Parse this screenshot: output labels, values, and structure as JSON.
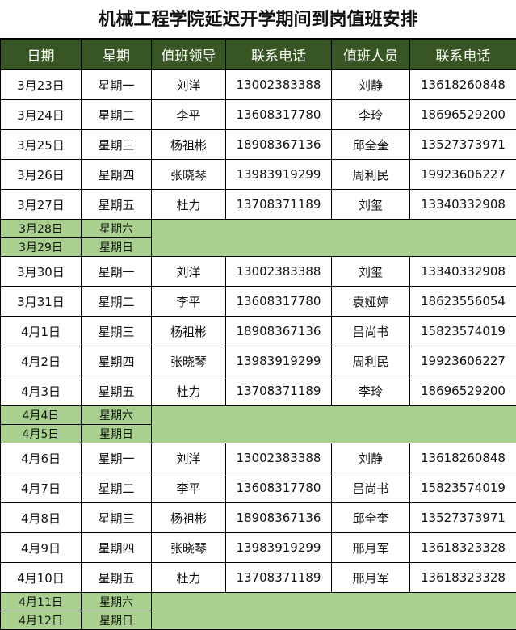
{
  "title": "机械工程学院延迟开学期间到岗值班安排",
  "headers": [
    "日期",
    "星期",
    "值班领导",
    "联系电话",
    "值班人员",
    "联系电话"
  ],
  "colors": {
    "header_bg": "#375623",
    "weekend_bg": "#a9d08e"
  },
  "rows": [
    {
      "date": "3月23日",
      "weekday": "星期一",
      "leader": "刘洋",
      "leader_phone": "13002383388",
      "staff": "刘静",
      "staff_phone": "13618260848"
    },
    {
      "date": "3月24日",
      "weekday": "星期二",
      "leader": "李平",
      "leader_phone": "13608317780",
      "staff": "李玲",
      "staff_phone": "18696529200"
    },
    {
      "date": "3月25日",
      "weekday": "星期三",
      "leader": "杨祖彬",
      "leader_phone": "18908367136",
      "staff": "邱全奎",
      "staff_phone": "13527373971"
    },
    {
      "date": "3月26日",
      "weekday": "星期四",
      "leader": "张晓琴",
      "leader_phone": "13983919299",
      "staff": "周利民",
      "staff_phone": "19923606227"
    },
    {
      "date": "3月27日",
      "weekday": "星期五",
      "leader": "杜力",
      "leader_phone": "13708371189",
      "staff": "刘玺",
      "staff_phone": "13340332908"
    },
    {
      "date": "3月28日",
      "weekday": "星期六",
      "weekend": true
    },
    {
      "date": "3月29日",
      "weekday": "星期日",
      "weekend": true
    },
    {
      "date": "3月30日",
      "weekday": "星期一",
      "leader": "刘洋",
      "leader_phone": "13002383388",
      "staff": "刘玺",
      "staff_phone": "13340332908"
    },
    {
      "date": "3月31日",
      "weekday": "星期二",
      "leader": "李平",
      "leader_phone": "13608317780",
      "staff": "袁娅婷",
      "staff_phone": "18623556054"
    },
    {
      "date": "4月1日",
      "weekday": "星期三",
      "leader": "杨祖彬",
      "leader_phone": "18908367136",
      "staff": "吕尚书",
      "staff_phone": "15823574019"
    },
    {
      "date": "4月2日",
      "weekday": "星期四",
      "leader": "张晓琴",
      "leader_phone": "13983919299",
      "staff": "周利民",
      "staff_phone": "19923606227"
    },
    {
      "date": "4月3日",
      "weekday": "星期五",
      "leader": "杜力",
      "leader_phone": "13708371189",
      "staff": "李玲",
      "staff_phone": "18696529200"
    },
    {
      "date": "4月4日",
      "weekday": "星期六",
      "weekend": true
    },
    {
      "date": "4月5日",
      "weekday": "星期日",
      "weekend": true
    },
    {
      "date": "4月6日",
      "weekday": "星期一",
      "leader": "刘洋",
      "leader_phone": "13002383388",
      "staff": "刘静",
      "staff_phone": "13618260848"
    },
    {
      "date": "4月7日",
      "weekday": "星期二",
      "leader": "李平",
      "leader_phone": "13608317780",
      "staff": "吕尚书",
      "staff_phone": "15823574019"
    },
    {
      "date": "4月8日",
      "weekday": "星期三",
      "leader": "杨祖彬",
      "leader_phone": "18908367136",
      "staff": "邱全奎",
      "staff_phone": "13527373971"
    },
    {
      "date": "4月9日",
      "weekday": "星期四",
      "leader": "张晓琴",
      "leader_phone": "13983919299",
      "staff": "邢月军",
      "staff_phone": "13618323328"
    },
    {
      "date": "4月10日",
      "weekday": "星期五",
      "leader": "杜力",
      "leader_phone": "13708371189",
      "staff": "邢月军",
      "staff_phone": "13618323328"
    },
    {
      "date": "4月11日",
      "weekday": "星期六",
      "weekend": true
    },
    {
      "date": "4月12日",
      "weekday": "星期日",
      "weekend": true
    }
  ]
}
